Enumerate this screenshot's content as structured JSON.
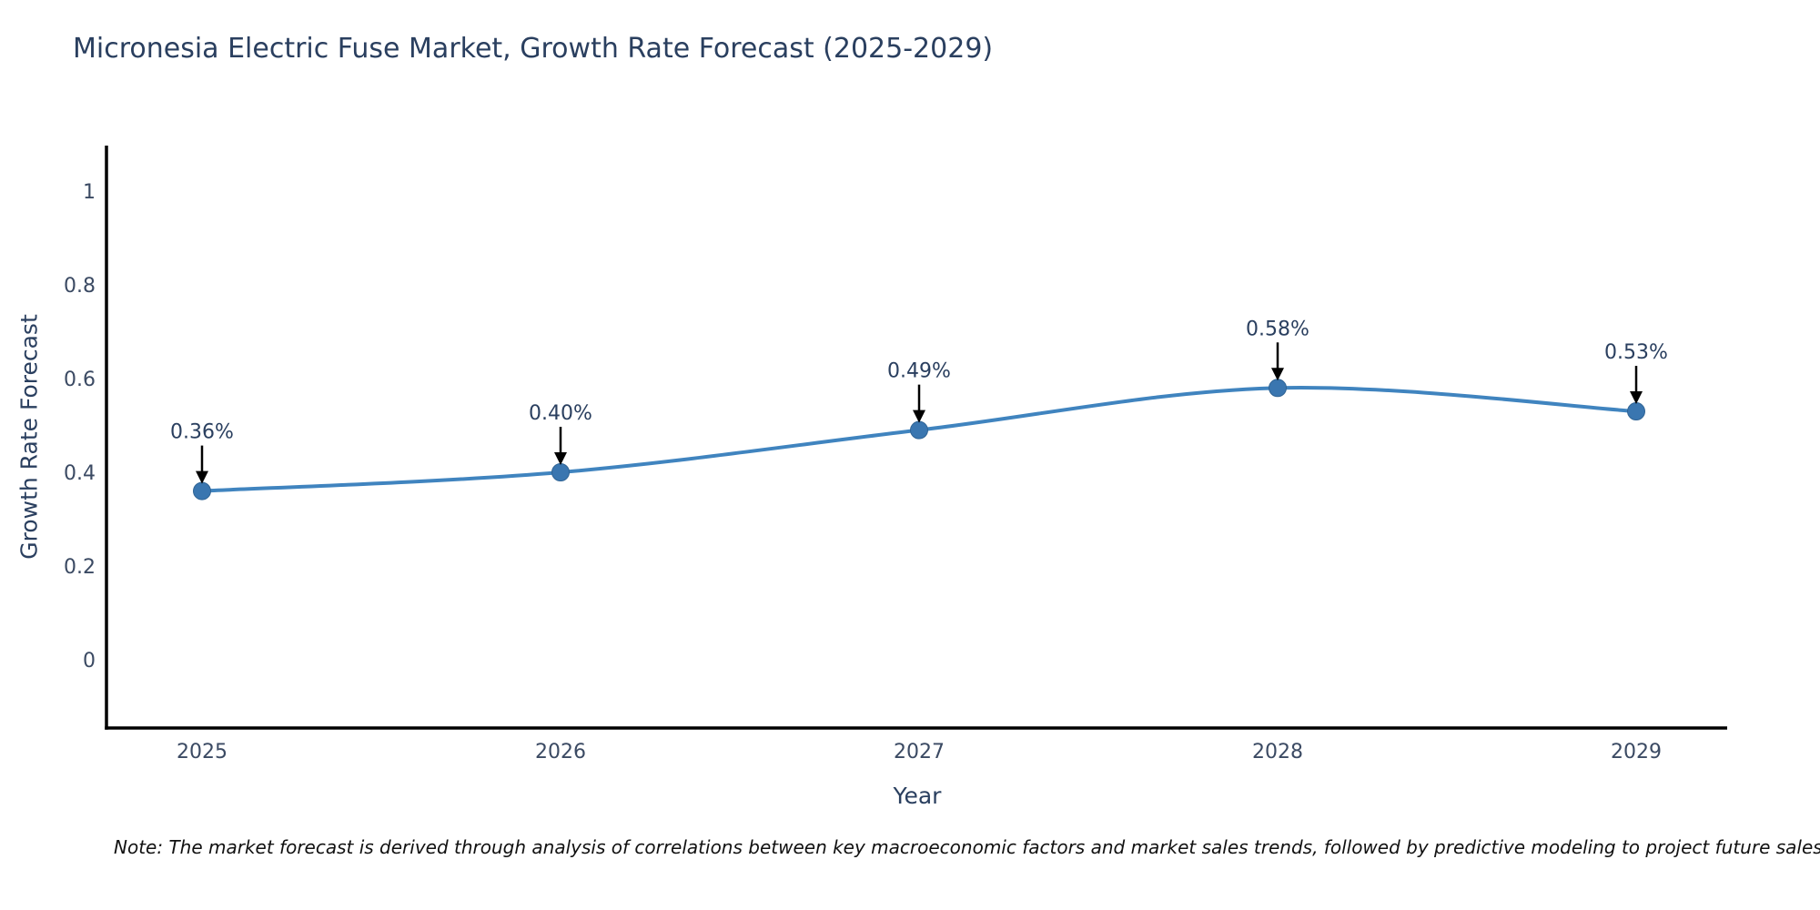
{
  "header": {
    "title": "Micronesia Electric Fuse Market, Growth Rate Forecast (2025-2029)"
  },
  "chart_data": {
    "type": "line",
    "categories": [
      "2025",
      "2026",
      "2027",
      "2028",
      "2029"
    ],
    "values": [
      0.36,
      0.4,
      0.49,
      0.58,
      0.53
    ],
    "point_labels": [
      "0.36%",
      "0.40%",
      "0.49%",
      "0.58%",
      "0.53%"
    ],
    "title": "Micronesia Electric Fuse Market, Growth Rate Forecast (2025-2029)",
    "xlabel": "Year",
    "ylabel": "Growth Rate Forecast",
    "yticks": [
      0,
      0.2,
      0.4,
      0.6,
      0.8,
      1
    ],
    "ylim": [
      -0.15,
      1.1
    ],
    "grid": false,
    "legend_position": "none",
    "line_shape": "spline",
    "annotations": "black arrows pointing down to each data point",
    "colors": {
      "line": "#4084bf",
      "marker": "#3a76b0",
      "marker_edge": "#2f6394",
      "axis": "#000000",
      "arrow": "#000000",
      "text": "#2a3f5f"
    }
  },
  "footer": {
    "note": "Note: The market forecast is derived through analysis of correlations between key macroeconomic factors and market sales trends, followed by predictive modeling to project future sales"
  }
}
